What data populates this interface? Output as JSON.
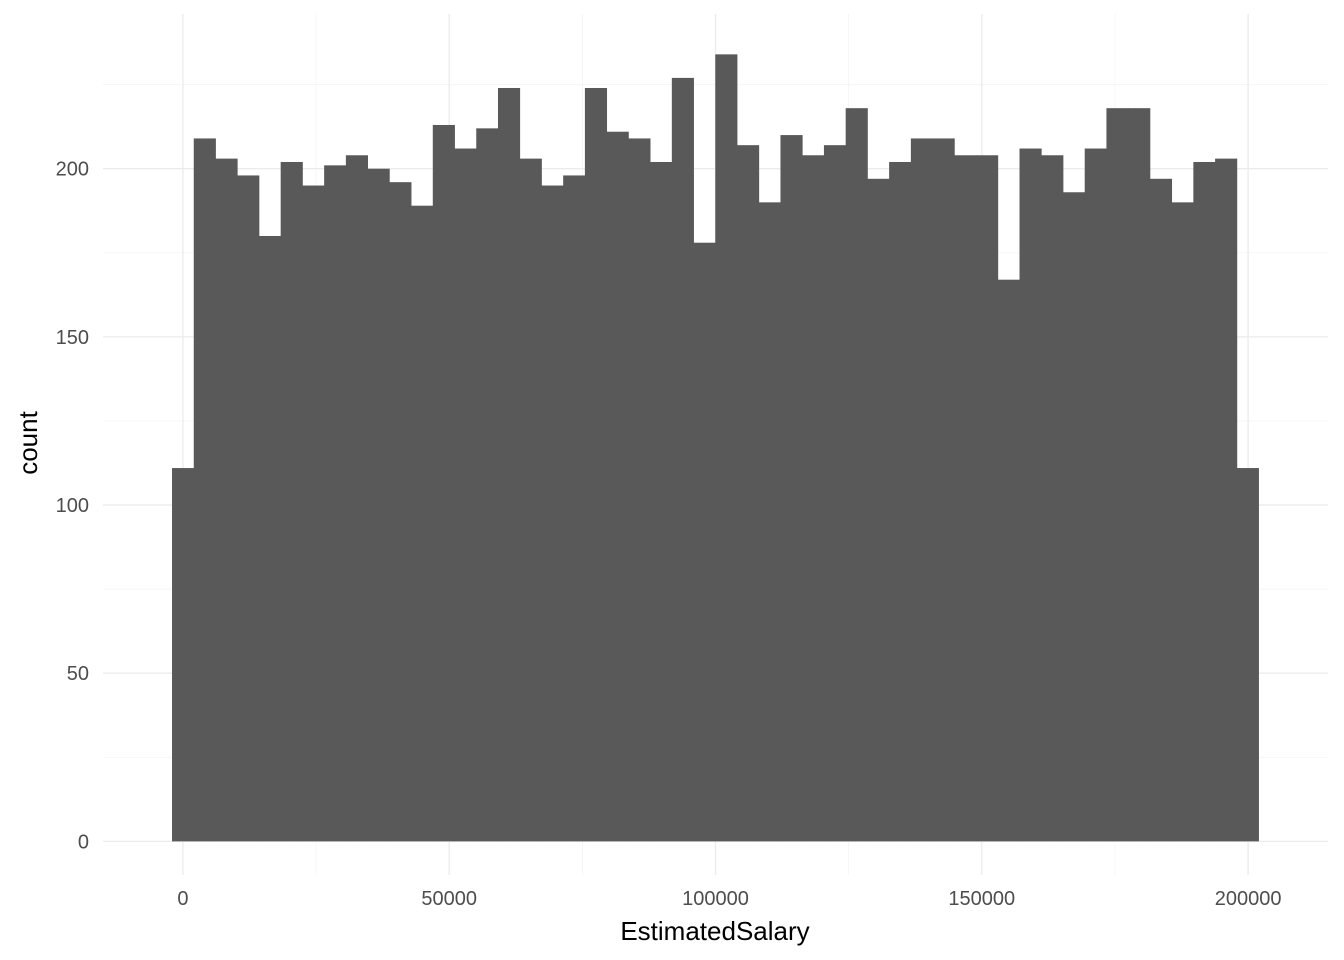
{
  "chart_data": {
    "type": "bar",
    "subtype": "histogram",
    "xlabel": "EstimatedSalary",
    "ylabel": "count",
    "bar_color": "#595959",
    "grid": true,
    "xlim": [
      -15000,
      215000
    ],
    "ylim": [
      -10,
      246
    ],
    "x_ticks": [
      0,
      50000,
      100000,
      150000,
      200000
    ],
    "x_tick_labels": [
      "0",
      "50000",
      "100000",
      "150000",
      "200000"
    ],
    "y_ticks": [
      0,
      50,
      100,
      150,
      200
    ],
    "y_tick_labels": [
      "0",
      "50",
      "100",
      "150",
      "200"
    ],
    "bin_width": 4080,
    "bin_centers": [
      0,
      4080,
      8160,
      12240,
      16320,
      20400,
      24480,
      28560,
      32640,
      36720,
      40800,
      44880,
      48960,
      53040,
      57120,
      61200,
      65280,
      69360,
      73440,
      77520,
      81600,
      85680,
      89760,
      93840,
      97920,
      102000,
      106080,
      110160,
      114240,
      118320,
      122400,
      126480,
      130560,
      134640,
      138720,
      142800,
      146880,
      150960,
      155040,
      159120,
      163200,
      167280,
      171360,
      175440,
      179520,
      183600,
      187680,
      191760,
      195840,
      199920
    ],
    "counts": [
      111,
      209,
      203,
      198,
      180,
      202,
      195,
      201,
      204,
      200,
      196,
      189,
      213,
      206,
      212,
      224,
      203,
      195,
      198,
      224,
      211,
      209,
      202,
      227,
      178,
      234,
      207,
      190,
      210,
      204,
      207,
      218,
      197,
      202,
      209,
      209,
      204,
      204,
      167,
      206,
      204,
      193,
      206,
      218,
      218,
      197,
      190,
      202,
      203,
      111
    ]
  }
}
